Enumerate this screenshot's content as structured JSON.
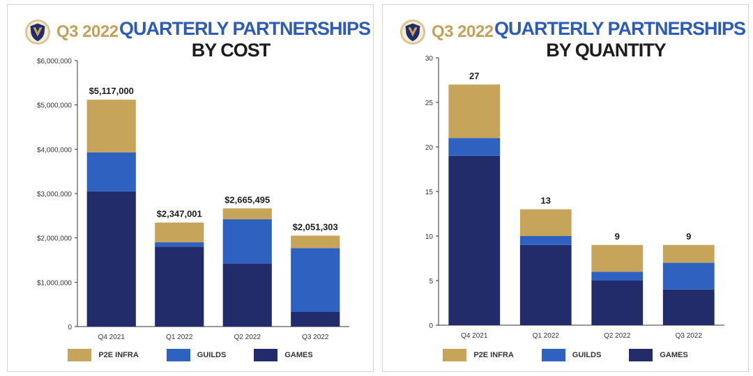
{
  "colors": {
    "p2e_infra": "#c6a55b",
    "guilds": "#2f62c0",
    "games": "#232c6b",
    "title_blue": "#2d5bb8",
    "gold": "#c2a25a"
  },
  "chart_data": [
    {
      "type": "bar",
      "stacked": true,
      "quarter_label": "Q3 2022",
      "title": "QUARTERLY PARTNERSHIPS",
      "subtitle": "BY COST",
      "categories": [
        "Q4 2021",
        "Q1 2022",
        "Q2 2022",
        "Q3 2022"
      ],
      "series": [
        {
          "name": "GAMES",
          "values": [
            3050000,
            1800000,
            1420000,
            330000
          ]
        },
        {
          "name": "GUILDS",
          "values": [
            880000,
            100000,
            1000000,
            1440000
          ]
        },
        {
          "name": "P2E INFRA",
          "values": [
            1187000,
            447001,
            245495,
            281303
          ]
        }
      ],
      "totals": [
        5117000,
        2347001,
        2665495,
        2051303
      ],
      "total_labels": [
        "$5,117,000",
        "$2,347,001",
        "$2,665,495",
        "$2,051,303"
      ],
      "y_ticks": [
        0,
        1000000,
        2000000,
        3000000,
        4000000,
        5000000,
        6000000
      ],
      "y_tick_labels": [
        "0",
        "$1,000,000",
        "$2,000,000",
        "$3,000,000",
        "$4,000,000",
        "$5,000,000",
        "$6,000,000"
      ],
      "ylim": [
        0,
        6000000
      ],
      "legend": [
        "P2E INFRA",
        "GUILDS",
        "GAMES"
      ],
      "legend_position": "bottom",
      "grid": false
    },
    {
      "type": "bar",
      "stacked": true,
      "quarter_label": "Q3 2022",
      "title": "QUARTERLY PARTNERSHIPS",
      "subtitle": "BY QUANTITY",
      "categories": [
        "Q4 2021",
        "Q1 2022",
        "Q2 2022",
        "Q3 2022"
      ],
      "series": [
        {
          "name": "GAMES",
          "values": [
            19,
            9,
            5,
            4
          ]
        },
        {
          "name": "GUILDS",
          "values": [
            2,
            1,
            1,
            3
          ]
        },
        {
          "name": "P2E INFRA",
          "values": [
            6,
            3,
            3,
            2
          ]
        }
      ],
      "totals": [
        27,
        13,
        9,
        9
      ],
      "total_labels": [
        "27",
        "13",
        "9",
        "9"
      ],
      "y_ticks": [
        0,
        5,
        10,
        15,
        20,
        25,
        30
      ],
      "y_tick_labels": [
        "0",
        "5",
        "10",
        "15",
        "20",
        "25",
        "30"
      ],
      "ylim": [
        0,
        30
      ],
      "legend": [
        "P2E INFRA",
        "GUILDS",
        "GAMES"
      ],
      "legend_position": "bottom",
      "grid": false
    }
  ]
}
